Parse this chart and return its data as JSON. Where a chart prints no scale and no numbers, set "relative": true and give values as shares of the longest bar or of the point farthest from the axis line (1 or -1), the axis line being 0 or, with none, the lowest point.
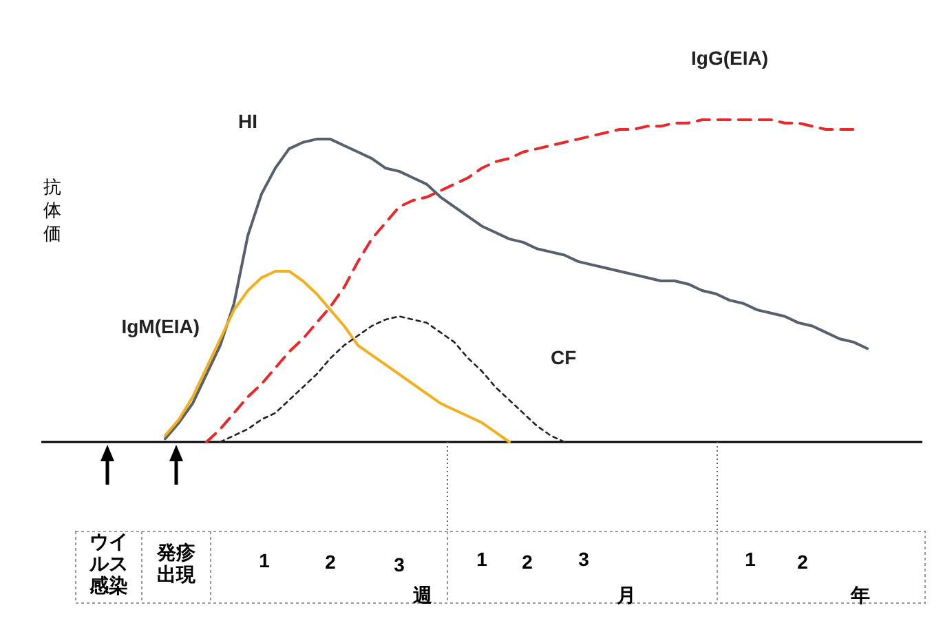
{
  "chart_data": {
    "type": "line",
    "relative": true,
    "ylabel": "抗体価",
    "legend": false,
    "marker": "none",
    "categories": [
      null,
      null,
      null,
      null,
      null,
      null,
      null,
      null,
      null,
      null,
      null,
      null,
      null,
      null,
      null,
      null,
      null,
      null,
      null,
      null,
      null,
      null,
      null,
      null,
      null,
      null,
      null,
      null,
      null,
      null,
      null,
      null,
      null,
      null,
      null,
      null,
      null,
      null,
      null,
      null,
      null,
      null,
      null,
      null,
      null,
      null,
      null,
      null,
      null,
      null,
      null,
      null,
      null,
      null
    ],
    "series": [
      {
        "name": "HI",
        "color": "#56606e",
        "line_style": "solid",
        "values": [
          null,
          0.01,
          0.06,
          0.12,
          0.21,
          0.3,
          0.43,
          0.64,
          0.77,
          0.85,
          0.91,
          0.93,
          0.94,
          0.94,
          0.92,
          0.9,
          0.88,
          0.85,
          0.84,
          0.82,
          0.8,
          0.76,
          0.73,
          0.7,
          0.67,
          0.65,
          0.63,
          0.62,
          0.6,
          0.59,
          0.58,
          0.56,
          0.55,
          0.54,
          0.53,
          0.52,
          0.51,
          0.5,
          0.5,
          0.49,
          0.47,
          0.46,
          0.44,
          0.43,
          0.41,
          0.4,
          0.39,
          0.37,
          0.36,
          0.34,
          0.32,
          0.31,
          0.29,
          null
        ]
      },
      {
        "name": "IgG(EIA)",
        "color": "#e8282b",
        "line_style": "dashed",
        "values": [
          null,
          null,
          null,
          null,
          0,
          0.04,
          0.09,
          0.14,
          0.18,
          0.23,
          0.28,
          0.32,
          0.37,
          0.42,
          0.48,
          0.56,
          0.63,
          0.68,
          0.73,
          0.75,
          0.76,
          0.78,
          0.8,
          0.82,
          0.85,
          0.87,
          0.88,
          0.9,
          0.91,
          0.92,
          0.93,
          0.94,
          0.95,
          0.96,
          0.97,
          0.97,
          0.98,
          0.98,
          0.99,
          0.99,
          1,
          1,
          1,
          1,
          1,
          1,
          0.99,
          0.99,
          0.98,
          0.97,
          0.97,
          0.97,
          null,
          null
        ]
      },
      {
        "name": "IgM(EIA)",
        "color": "#f2b01e",
        "line_style": "solid",
        "values": [
          null,
          0.02,
          0.07,
          0.14,
          0.23,
          0.32,
          0.41,
          0.47,
          0.51,
          0.53,
          0.53,
          0.5,
          0.46,
          0.41,
          0.36,
          0.3,
          0.27,
          0.24,
          0.21,
          0.18,
          0.15,
          0.12,
          0.1,
          0.08,
          0.06,
          0.03,
          0,
          null,
          null,
          null,
          null,
          null,
          null,
          null,
          null,
          null,
          null,
          null,
          null,
          null,
          null,
          null,
          null,
          null,
          null,
          null,
          null,
          null,
          null,
          null,
          null,
          null,
          null,
          null
        ]
      },
      {
        "name": "CF",
        "color": "#222222",
        "line_style": "dotted",
        "values": [
          null,
          null,
          null,
          null,
          null,
          0,
          0.02,
          0.04,
          0.07,
          0.09,
          0.13,
          0.17,
          0.21,
          0.26,
          0.3,
          0.33,
          0.36,
          0.38,
          0.39,
          0.38,
          0.37,
          0.34,
          0.31,
          0.26,
          0.22,
          0.17,
          0.13,
          0.09,
          0.05,
          0.02,
          0,
          null,
          null,
          null,
          null,
          null,
          null,
          null,
          null,
          null,
          null,
          null,
          null,
          null,
          null,
          null,
          null,
          null,
          null,
          null,
          null,
          null,
          null,
          null
        ]
      }
    ],
    "annotations": [
      "ウイルス感染",
      "発疹出現",
      "1",
      "2",
      "3",
      "週",
      "1",
      "2",
      "3",
      "月",
      "1",
      "2",
      "年"
    ]
  }
}
